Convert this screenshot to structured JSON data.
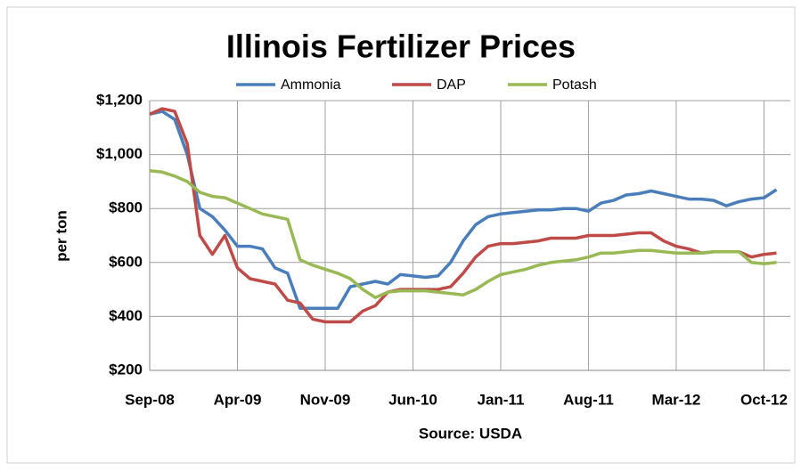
{
  "chart_data": {
    "type": "line",
    "title": "Illinois Fertilizer Prices",
    "ylabel": "per ton",
    "xlabel": "Source: USDA",
    "categories": [
      "Sep-08",
      null,
      null,
      null,
      null,
      null,
      null,
      "Apr-09",
      null,
      null,
      null,
      null,
      null,
      null,
      "Nov-09",
      null,
      null,
      null,
      null,
      null,
      null,
      "Jun-10",
      null,
      null,
      null,
      null,
      null,
      null,
      "Jan-11",
      null,
      null,
      null,
      null,
      null,
      null,
      "Aug-11",
      null,
      null,
      null,
      null,
      null,
      null,
      "Mar-12",
      null,
      null,
      null,
      null,
      null,
      null,
      "Oct-12",
      null
    ],
    "series": [
      {
        "name": "Ammonia",
        "color": "#4a7ebb",
        "values": [
          1150,
          1160,
          1130,
          1000,
          800,
          770,
          720,
          660,
          660,
          650,
          580,
          560,
          430,
          430,
          430,
          430,
          510,
          520,
          530,
          520,
          555,
          550,
          545,
          550,
          600,
          680,
          740,
          770,
          780,
          785,
          790,
          795,
          795,
          800,
          800,
          790,
          820,
          830,
          850,
          855,
          865,
          855,
          845,
          835,
          835,
          830,
          810,
          825,
          835,
          840,
          870
        ]
      },
      {
        "name": "DAP",
        "color": "#be4b48",
        "values": [
          1150,
          1170,
          1160,
          1040,
          700,
          630,
          700,
          580,
          540,
          530,
          520,
          460,
          450,
          390,
          380,
          380,
          380,
          420,
          440,
          490,
          500,
          500,
          500,
          500,
          510,
          560,
          620,
          660,
          670,
          670,
          675,
          680,
          690,
          690,
          690,
          700,
          700,
          700,
          705,
          710,
          710,
          680,
          660,
          650,
          635,
          640,
          640,
          640,
          620,
          630,
          635
        ]
      },
      {
        "name": "Potash",
        "color": "#98b954",
        "values": [
          940,
          935,
          920,
          900,
          860,
          845,
          840,
          820,
          800,
          780,
          770,
          760,
          610,
          590,
          575,
          560,
          540,
          500,
          470,
          490,
          495,
          495,
          495,
          490,
          485,
          480,
          500,
          530,
          555,
          565,
          575,
          590,
          600,
          605,
          610,
          620,
          635,
          635,
          640,
          645,
          645,
          640,
          635,
          635,
          635,
          640,
          640,
          640,
          600,
          595,
          600
        ]
      }
    ],
    "ylim": [
      200,
      1200
    ],
    "yticks": [
      {
        "value": 200,
        "label": "$200"
      },
      {
        "value": 400,
        "label": "$400"
      },
      {
        "value": 600,
        "label": "$600"
      },
      {
        "value": 800,
        "label": "$800"
      },
      {
        "value": 1000,
        "label": "$1,000"
      },
      {
        "value": 1200,
        "label": "$1,200"
      }
    ],
    "grid": true,
    "legend": "top"
  }
}
